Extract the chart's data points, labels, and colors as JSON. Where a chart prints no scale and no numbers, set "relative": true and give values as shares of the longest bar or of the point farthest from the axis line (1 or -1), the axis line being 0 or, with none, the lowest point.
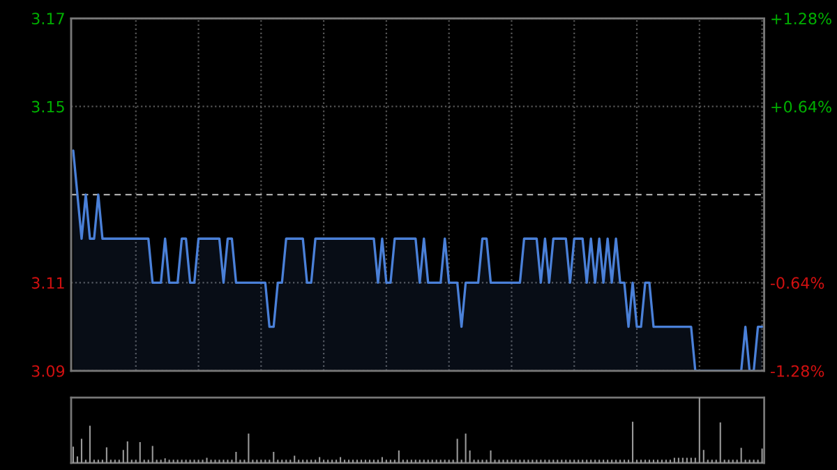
{
  "chart_data": [
    {
      "type": "area",
      "tick_labels": "y",
      "grid": true,
      "categories": [
        null,
        null,
        null,
        null,
        null,
        null,
        null,
        null,
        null,
        null,
        null,
        null,
        null,
        null,
        null,
        null,
        null,
        null,
        null,
        null,
        null,
        null,
        null,
        null,
        null,
        null,
        null,
        null,
        null,
        null,
        null,
        null,
        null,
        null,
        null,
        null,
        null,
        null,
        null,
        null,
        null,
        null,
        null,
        null,
        null,
        null,
        null,
        null,
        null,
        null,
        null,
        null,
        null,
        null,
        null,
        null,
        null,
        null,
        null,
        null,
        null,
        null,
        null,
        null,
        null,
        null,
        null,
        null,
        null,
        null,
        null,
        null,
        null,
        null,
        null,
        null,
        null,
        null,
        null,
        null,
        null,
        null,
        null,
        null,
        null,
        null,
        null,
        null,
        null,
        null,
        null,
        null,
        null,
        null,
        null,
        null,
        null,
        null,
        null,
        null,
        null,
        null,
        null,
        null,
        null,
        null,
        null,
        null,
        null,
        null,
        null,
        null,
        null,
        null,
        null,
        null,
        null,
        null,
        null,
        null,
        null,
        null,
        null,
        null,
        null,
        null,
        null,
        null,
        null,
        null,
        null,
        null,
        null,
        null,
        null,
        null,
        null,
        null,
        null,
        null,
        null,
        null,
        null,
        null,
        null,
        null,
        null,
        null,
        null,
        null,
        null,
        null,
        null,
        null,
        null,
        null,
        null,
        null,
        null,
        null,
        null,
        null,
        null,
        null,
        null,
        null
      ],
      "series": [
        {
          "color": "#4a80d8",
          "values": [
            3.14,
            3.13,
            3.12,
            3.13,
            3.12,
            3.12,
            3.13,
            3.12,
            3.12,
            3.12,
            3.12,
            3.12,
            3.12,
            3.12,
            3.12,
            3.12,
            3.12,
            3.12,
            3.12,
            3.11,
            3.11,
            3.11,
            3.12,
            3.11,
            3.11,
            3.11,
            3.12,
            3.12,
            3.11,
            3.11,
            3.12,
            3.12,
            3.12,
            3.12,
            3.12,
            3.12,
            3.11,
            3.12,
            3.12,
            3.11,
            3.11,
            3.11,
            3.11,
            3.11,
            3.11,
            3.11,
            3.11,
            3.1,
            3.1,
            3.11,
            3.11,
            3.12,
            3.12,
            3.12,
            3.12,
            3.12,
            3.11,
            3.11,
            3.12,
            3.12,
            3.12,
            3.12,
            3.12,
            3.12,
            3.12,
            3.12,
            3.12,
            3.12,
            3.12,
            3.12,
            3.12,
            3.12,
            3.12,
            3.11,
            3.12,
            3.11,
            3.11,
            3.12,
            3.12,
            3.12,
            3.12,
            3.12,
            3.12,
            3.11,
            3.12,
            3.11,
            3.11,
            3.11,
            3.11,
            3.12,
            3.11,
            3.11,
            3.11,
            3.1,
            3.11,
            3.11,
            3.11,
            3.11,
            3.12,
            3.12,
            3.11,
            3.11,
            3.11,
            3.11,
            3.11,
            3.11,
            3.11,
            3.11,
            3.12,
            3.12,
            3.12,
            3.12,
            3.11,
            3.12,
            3.11,
            3.12,
            3.12,
            3.12,
            3.12,
            3.11,
            3.12,
            3.12,
            3.12,
            3.11,
            3.12,
            3.11,
            3.12,
            3.11,
            3.12,
            3.11,
            3.12,
            3.11,
            3.11,
            3.1,
            3.11,
            3.1,
            3.1,
            3.11,
            3.11,
            3.1,
            3.1,
            3.1,
            3.1,
            3.1,
            3.1,
            3.1,
            3.1,
            3.1,
            3.1,
            3.09,
            3.09,
            3.09,
            3.09,
            3.09,
            3.09,
            3.09,
            3.09,
            3.09,
            3.09,
            3.09,
            3.09,
            3.1,
            3.09,
            3.09,
            3.1,
            3.1
          ]
        }
      ],
      "ylim": [
        3.09,
        3.17
      ],
      "yticks": [
        3.09,
        3.11,
        3.15,
        3.17
      ],
      "y2lim": [
        -1.28,
        1.28
      ],
      "y2ticks": [
        {
          "value": -1.28,
          "label": "-1.28%"
        },
        {
          "value": -0.64,
          "label": "-0.64%"
        },
        {
          "value": 0.64,
          "label": "+0.64%"
        },
        {
          "value": 1.28,
          "label": "+1.28%"
        }
      ],
      "ref_lines": [
        {
          "axis": "y",
          "value": 3.13,
          "color": "#aaaaaa",
          "line_style": "dashed"
        }
      ]
    },
    {
      "type": "bar",
      "relative": true,
      "tick_labels": false,
      "categories": [
        null,
        null,
        null,
        null,
        null,
        null,
        null,
        null,
        null,
        null,
        null,
        null,
        null,
        null,
        null,
        null,
        null,
        null,
        null,
        null,
        null,
        null,
        null,
        null,
        null,
        null,
        null,
        null,
        null,
        null,
        null,
        null,
        null,
        null,
        null,
        null,
        null,
        null,
        null,
        null,
        null,
        null,
        null,
        null,
        null,
        null,
        null,
        null,
        null,
        null,
        null,
        null,
        null,
        null,
        null,
        null,
        null,
        null,
        null,
        null,
        null,
        null,
        null,
        null,
        null,
        null,
        null,
        null,
        null,
        null,
        null,
        null,
        null,
        null,
        null,
        null,
        null,
        null,
        null,
        null,
        null,
        null,
        null,
        null,
        null,
        null,
        null,
        null,
        null,
        null,
        null,
        null,
        null,
        null,
        null,
        null,
        null,
        null,
        null,
        null,
        null,
        null,
        null,
        null,
        null,
        null,
        null,
        null,
        null,
        null,
        null,
        null,
        null,
        null,
        null,
        null,
        null,
        null,
        null,
        null,
        null,
        null,
        null,
        null,
        null,
        null,
        null,
        null,
        null,
        null,
        null,
        null,
        null,
        null,
        null,
        null,
        null,
        null,
        null,
        null,
        null,
        null,
        null,
        null,
        null,
        null,
        null,
        null,
        null,
        null,
        null,
        null,
        null,
        null,
        null,
        null,
        null,
        null,
        null,
        null,
        null,
        null,
        null,
        null,
        null,
        null
      ],
      "series": [
        {
          "color": "#9a9a9a",
          "values": [
            0.25,
            0.1,
            0.37,
            0.05,
            0.57,
            0.05,
            0.05,
            0.05,
            0.24,
            0.05,
            0.05,
            0.05,
            0.2,
            0.33,
            0.05,
            0.05,
            0.32,
            0.05,
            0.05,
            0.26,
            0.05,
            0.05,
            0.07,
            0.05,
            0.05,
            0.05,
            0.05,
            0.05,
            0.05,
            0.05,
            0.05,
            0.05,
            0.08,
            0.05,
            0.05,
            0.05,
            0.05,
            0.05,
            0.05,
            0.17,
            0.05,
            0.05,
            0.45,
            0.05,
            0.05,
            0.05,
            0.05,
            0.05,
            0.17,
            0.05,
            0.05,
            0.05,
            0.05,
            0.11,
            0.05,
            0.05,
            0.05,
            0.05,
            0.05,
            0.09,
            0.05,
            0.05,
            0.05,
            0.05,
            0.09,
            0.05,
            0.05,
            0.05,
            0.05,
            0.05,
            0.05,
            0.05,
            0.05,
            0.05,
            0.09,
            0.05,
            0.05,
            0.05,
            0.19,
            0.05,
            0.05,
            0.05,
            0.05,
            0.05,
            0.05,
            0.05,
            0.05,
            0.05,
            0.05,
            0.05,
            0.05,
            0.05,
            0.37,
            0.05,
            0.45,
            0.19,
            0.05,
            0.05,
            0.05,
            0.05,
            0.19,
            0.05,
            0.05,
            0.05,
            0.05,
            0.05,
            0.05,
            0.05,
            0.05,
            0.05,
            0.05,
            0.05,
            0.05,
            0.05,
            0.05,
            0.05,
            0.05,
            0.05,
            0.05,
            0.05,
            0.05,
            0.05,
            0.05,
            0.05,
            0.05,
            0.05,
            0.05,
            0.05,
            0.05,
            0.05,
            0.05,
            0.05,
            0.05,
            0.05,
            0.63,
            0.05,
            0.05,
            0.05,
            0.05,
            0.05,
            0.05,
            0.05,
            0.05,
            0.05,
            0.08,
            0.08,
            0.08,
            0.08,
            0.08,
            0.08,
            1,
            0.2,
            0.05,
            0.05,
            0.05,
            0.62,
            0.05,
            0.05,
            0.05,
            0.05,
            0.23,
            0.05,
            0.05,
            0.05,
            0.05,
            0.22
          ]
        }
      ]
    }
  ]
}
